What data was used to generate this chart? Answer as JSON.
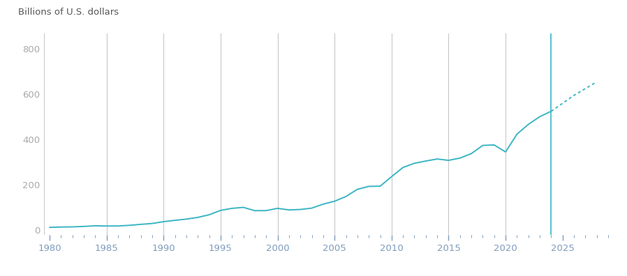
{
  "years_actual": [
    1980,
    1981,
    1982,
    1983,
    1984,
    1985,
    1986,
    1987,
    1988,
    1989,
    1990,
    1991,
    1992,
    1993,
    1994,
    1995,
    1996,
    1997,
    1998,
    1999,
    2000,
    2001,
    2002,
    2003,
    2004,
    2005,
    2006,
    2007,
    2008,
    2009,
    2010,
    2011,
    2012,
    2013,
    2014,
    2015,
    2016,
    2017,
    2018,
    2019,
    2020,
    2021,
    2022,
    2023,
    2024
  ],
  "gdp_actual": [
    11.9,
    13.5,
    14.1,
    16.1,
    19.0,
    18.0,
    18.1,
    21.0,
    25.3,
    29.1,
    37.1,
    43.1,
    48.5,
    56.0,
    67.6,
    87.0,
    96.0,
    100.2,
    85.7,
    86.0,
    96.0,
    89.0,
    91.0,
    97.0,
    114.6,
    127.4,
    148.5,
    180.0,
    193.0,
    194.0,
    236.0,
    276.5,
    295.0,
    305.0,
    314.0,
    308.0,
    318.0,
    338.0,
    374.0,
    376.0,
    345.0,
    424.0,
    467.0,
    501.0,
    525.0
  ],
  "years_forecast": [
    2024,
    2025,
    2026,
    2027,
    2028
  ],
  "gdp_forecast": [
    525.0,
    560.0,
    595.0,
    625.0,
    655.0
  ],
  "line_color": "#3bb5c3",
  "forecast_color": "#3bb5c3",
  "vline_color": "#3bb5c3",
  "vline_year": 2024,
  "grid_years": [
    1985,
    1990,
    1995,
    2000,
    2005,
    2010,
    2015,
    2020
  ],
  "grid_color": "#c8c8c8",
  "yticks": [
    0,
    200,
    400,
    600,
    800
  ],
  "xticks": [
    1980,
    1985,
    1990,
    1995,
    2000,
    2005,
    2010,
    2015,
    2020,
    2025
  ],
  "ylabel": "Billions of U.S. dollars",
  "xlim": [
    1979.5,
    2029
  ],
  "ylim": [
    -20,
    870
  ],
  "tick_color": "#7f9cbc",
  "label_color": "#7f9cbc",
  "ylabel_color": "#555555",
  "background_color": "#ffffff",
  "ytick_label_color": "#aaaaaa"
}
